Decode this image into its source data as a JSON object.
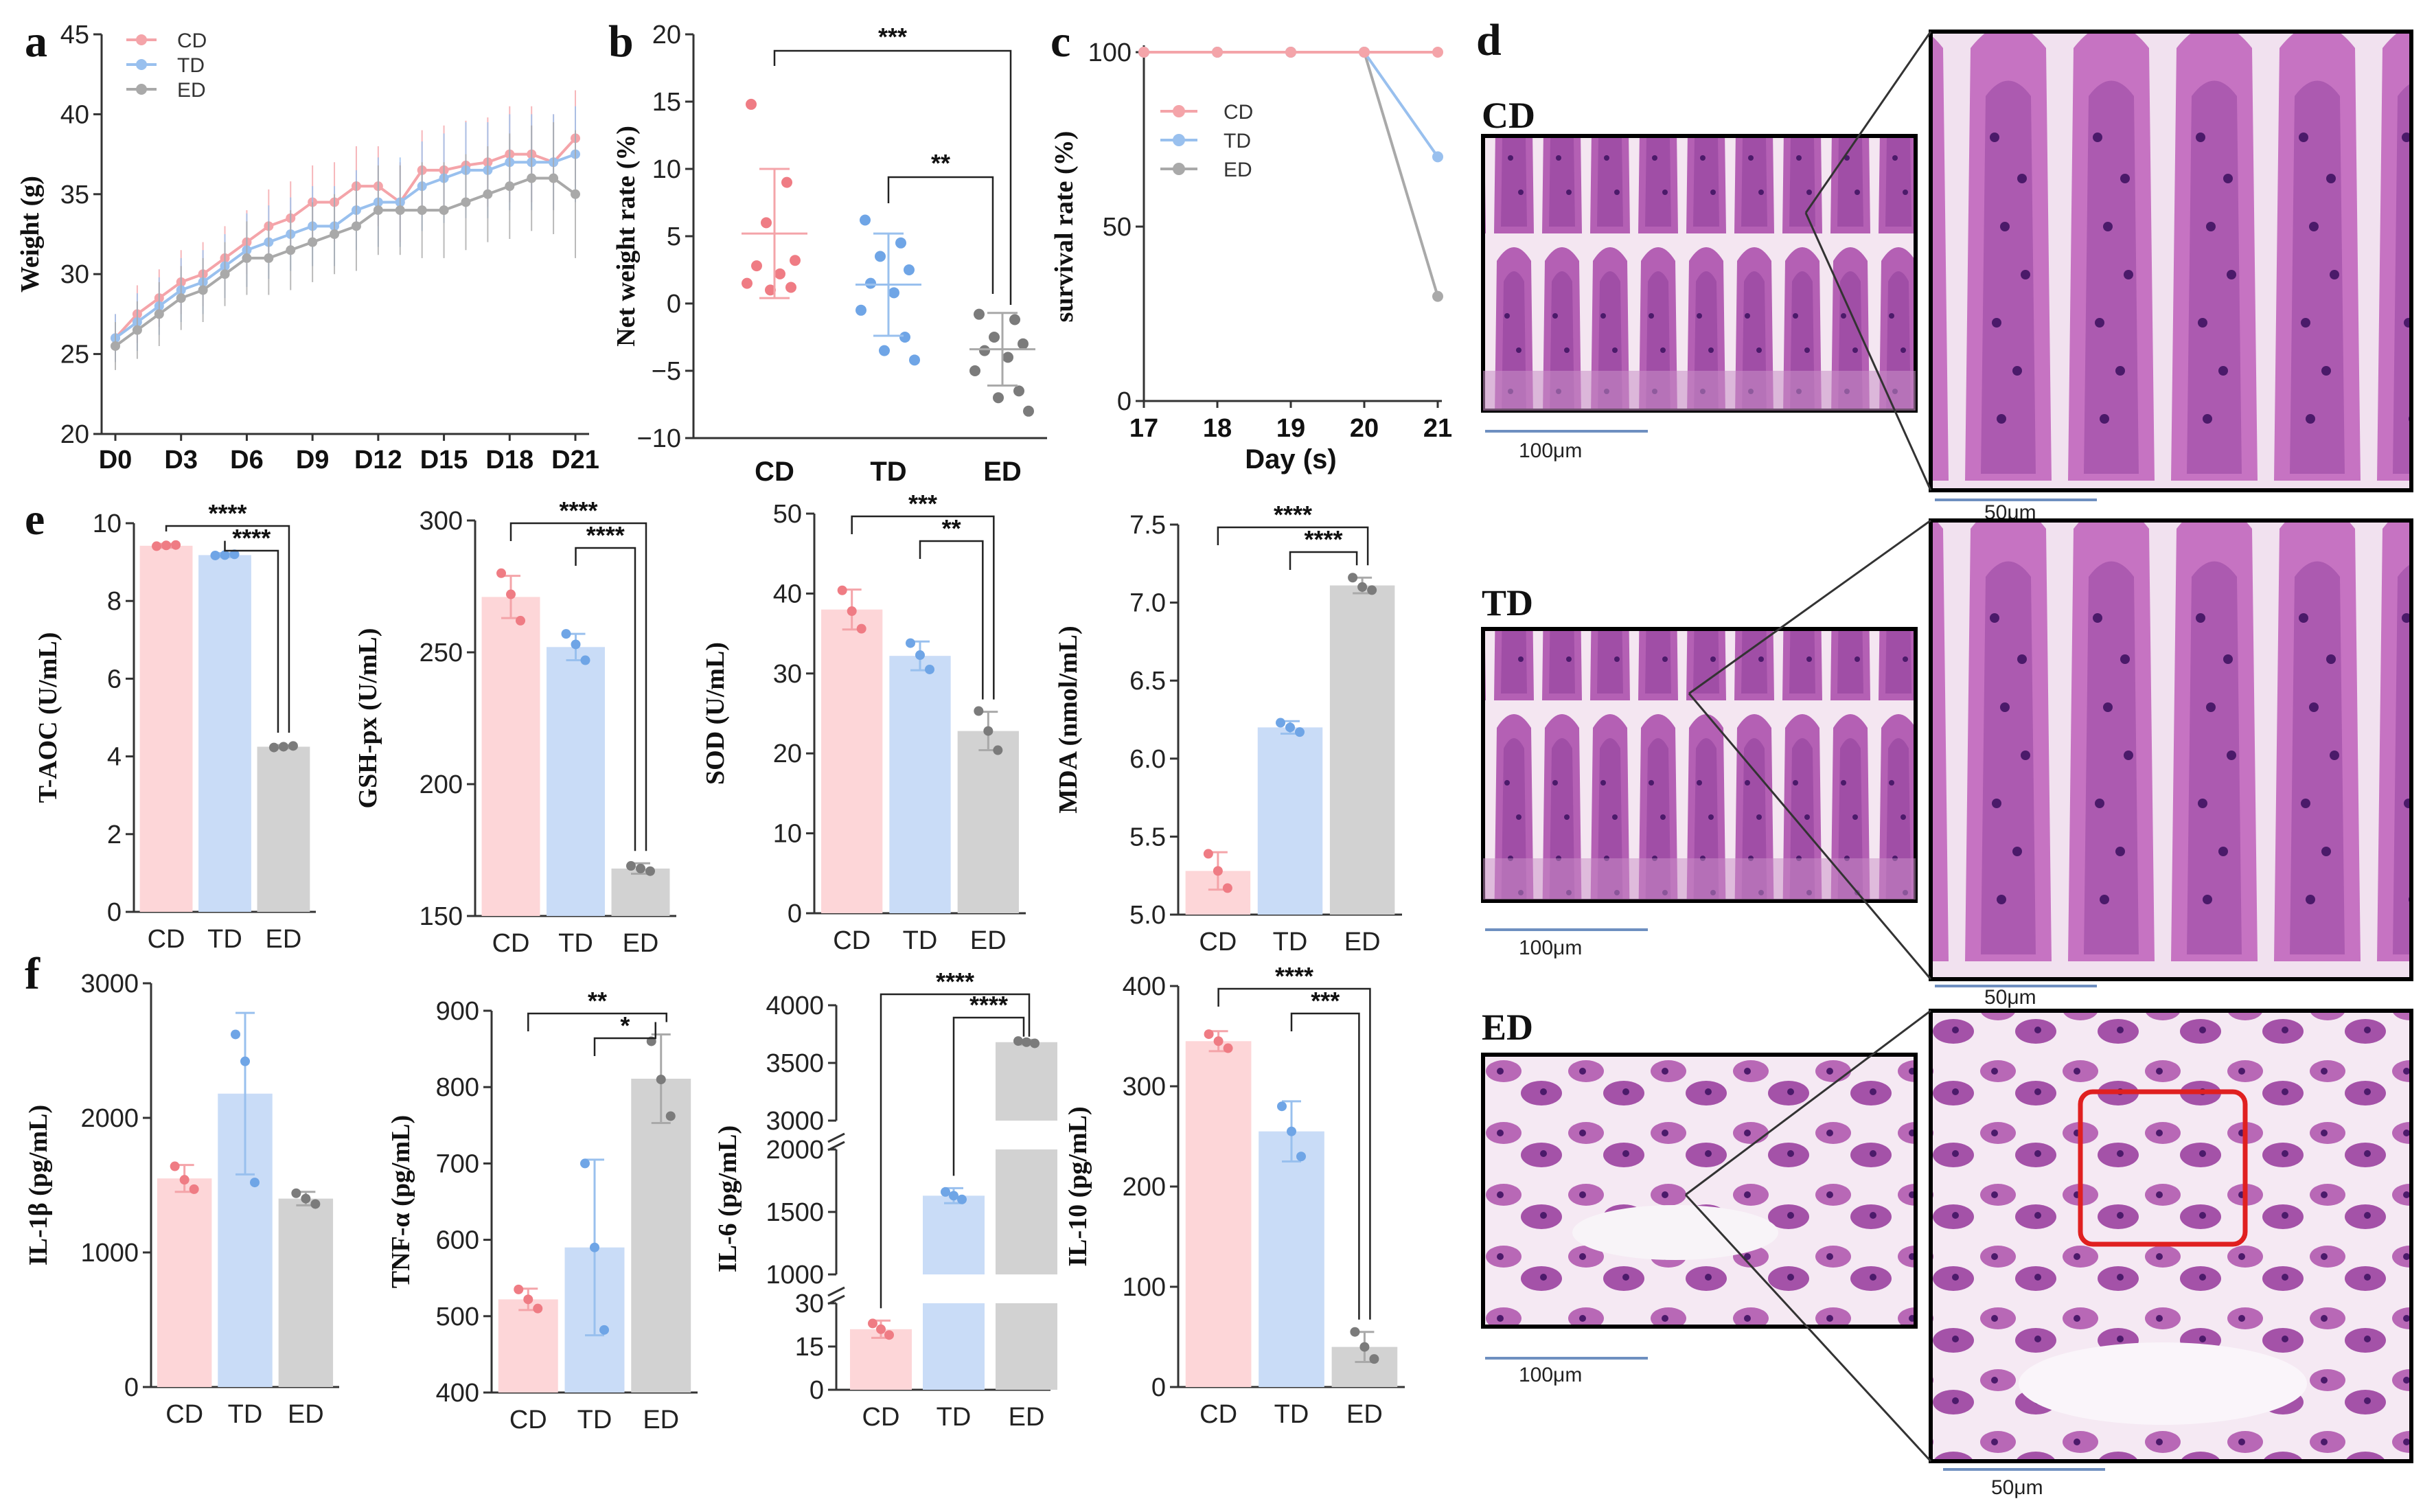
{
  "colors": {
    "CD": "#f4a4a9",
    "TD": "#99c0ee",
    "ED": "#a9a9a9",
    "CD_fill": "#fdd6d8",
    "TD_fill": "#c9dcf7",
    "ED_fill": "#d2d2d2",
    "CD_dot": "#ef7c84",
    "TD_dot": "#6fa5e6",
    "ED_dot": "#7b7b7b"
  },
  "groups": [
    "CD",
    "TD",
    "ED"
  ],
  "panel_letters": {
    "a": "a",
    "b": "b",
    "c": "c",
    "d": "d",
    "e": "e",
    "f": "f"
  },
  "chart_data": [
    {
      "id": "a",
      "type": "line",
      "ylabel": "Weight (g)",
      "ylim": [
        20,
        45
      ],
      "yticks": [
        20,
        25,
        30,
        35,
        40,
        45
      ],
      "x": [
        0,
        1,
        2,
        3,
        4,
        5,
        6,
        7,
        8,
        9,
        10,
        11,
        12,
        13,
        14,
        15,
        16,
        17,
        18,
        19,
        20,
        21
      ],
      "xticks": [
        0,
        3,
        6,
        9,
        12,
        15,
        18,
        21
      ],
      "xtick_labels": [
        "D0",
        "D3",
        "D6",
        "D9",
        "D12",
        "D15",
        "D18",
        "D21"
      ],
      "legend": [
        "CD",
        "TD",
        "ED"
      ],
      "series": [
        {
          "name": "CD",
          "values": [
            26,
            27.5,
            28.5,
            29.5,
            30,
            31,
            32,
            33,
            33.5,
            34.5,
            34.5,
            35.5,
            35.5,
            34.5,
            36.5,
            36.5,
            36.8,
            37,
            37.5,
            37.5,
            37,
            38.5
          ],
          "err": [
            1.5,
            1.8,
            1.8,
            2,
            2,
            2,
            2,
            2.3,
            2.3,
            2.3,
            2.5,
            2.5,
            2.5,
            2.5,
            2.5,
            2.8,
            2.8,
            2.8,
            3,
            3,
            3,
            3
          ]
        },
        {
          "name": "TD",
          "values": [
            26,
            27,
            28,
            29,
            29.5,
            30.5,
            31.5,
            32,
            32.5,
            33,
            33,
            34,
            34.5,
            34.5,
            35.5,
            36,
            36.5,
            36.5,
            37,
            37,
            37,
            37.5
          ],
          "err": [
            1.5,
            1.8,
            1.8,
            2,
            2,
            2,
            2.3,
            2.3,
            2.3,
            2.5,
            2.5,
            2.5,
            2.8,
            2.8,
            2.8,
            2.8,
            3,
            3,
            3,
            3,
            3,
            3
          ]
        },
        {
          "name": "ED",
          "values": [
            25.5,
            26.5,
            27.5,
            28.5,
            29,
            30,
            31,
            31,
            31.5,
            32,
            32.5,
            33,
            34,
            34,
            34,
            34,
            34.5,
            35,
            35.5,
            36,
            36,
            35
          ],
          "err": [
            1.5,
            1.8,
            2,
            2,
            2,
            2,
            2.3,
            2.3,
            2.5,
            2.5,
            2.5,
            2.8,
            2.8,
            2.8,
            3,
            3,
            3,
            3,
            3.3,
            3.3,
            3.5,
            4
          ]
        }
      ]
    },
    {
      "id": "b",
      "type": "scatter",
      "ylabel": "Net weight rate (%)",
      "ylim": [
        -10,
        20
      ],
      "yticks": [
        -10,
        -5,
        0,
        5,
        10,
        15,
        20
      ],
      "categories": [
        "CD",
        "TD",
        "ED"
      ],
      "points": [
        [
          14.8,
          9,
          6,
          3.2,
          2.8,
          2.2,
          1.5,
          1.2,
          1
        ],
        [
          6.2,
          4.5,
          3.5,
          2.5,
          1.5,
          0.8,
          -0.5,
          -2.5,
          -3.5,
          -4.2
        ],
        [
          -0.8,
          -1.2,
          -2.5,
          -3,
          -3.5,
          -4,
          -5,
          -6.5,
          -7,
          -8
        ]
      ],
      "means": [
        5.2,
        1.4,
        -3.4
      ],
      "sd": [
        4.8,
        3.8,
        2.7
      ],
      "significance": [
        {
          "from": 0,
          "to": 2,
          "label": "***"
        },
        {
          "from": 1,
          "to": 2,
          "label": "**"
        }
      ]
    },
    {
      "id": "c",
      "type": "line",
      "ylabel": "survival rate (%)",
      "xlabel": "Day (s)",
      "ylim": [
        0,
        100
      ],
      "yticks": [
        0,
        50,
        100
      ],
      "x": [
        17,
        18,
        19,
        20,
        21
      ],
      "xlim": [
        17,
        21
      ],
      "xticks": [
        17,
        18,
        19,
        20,
        21
      ],
      "legend": [
        "CD",
        "TD",
        "ED"
      ],
      "series": [
        {
          "name": "CD",
          "values": [
            100,
            100,
            100,
            100,
            100
          ]
        },
        {
          "name": "TD",
          "values": [
            100,
            100,
            100,
            100,
            70
          ]
        },
        {
          "name": "ED",
          "values": [
            100,
            100,
            100,
            100,
            30
          ]
        }
      ]
    },
    {
      "id": "e1",
      "type": "bar",
      "ylabel": "T-AOC (U/mL)",
      "ylim": [
        0,
        10
      ],
      "yticks": [
        0,
        2,
        4,
        6,
        8,
        10
      ],
      "categories": [
        "CD",
        "TD",
        "ED"
      ],
      "values": [
        9.42,
        9.18,
        4.25
      ],
      "sd": [
        0.05,
        0.05,
        0.04
      ],
      "points": [
        [
          9.41,
          9.43,
          9.44
        ],
        [
          9.17,
          9.18,
          9.2
        ],
        [
          4.23,
          4.25,
          4.27
        ]
      ],
      "significance": [
        {
          "from": 0,
          "to": 2,
          "label": "****"
        },
        {
          "from": 1,
          "to": 2,
          "label": "****"
        }
      ]
    },
    {
      "id": "e2",
      "type": "bar",
      "ylabel": "GSH-px (U/mL)",
      "ylim": [
        150,
        300
      ],
      "yticks": [
        150,
        200,
        250,
        300
      ],
      "categories": [
        "CD",
        "TD",
        "ED"
      ],
      "values": [
        271,
        252,
        168
      ],
      "sd": [
        8,
        5,
        2
      ],
      "points": [
        [
          280,
          272,
          262
        ],
        [
          257,
          253,
          247
        ],
        [
          169,
          168,
          167
        ]
      ],
      "significance": [
        {
          "from": 0,
          "to": 2,
          "label": "****"
        },
        {
          "from": 1,
          "to": 2,
          "label": "****"
        }
      ]
    },
    {
      "id": "e3",
      "type": "bar",
      "ylabel": "SOD (U/mL)",
      "ylim": [
        0,
        50
      ],
      "yticks": [
        0,
        10,
        20,
        30,
        40,
        50
      ],
      "categories": [
        "CD",
        "TD",
        "ED"
      ],
      "values": [
        38,
        32.2,
        22.8
      ],
      "sd": [
        2.5,
        1.8,
        2.4
      ],
      "points": [
        [
          40.4,
          37.8,
          35.6
        ],
        [
          33.8,
          32.3,
          30.5
        ],
        [
          25.3,
          22.8,
          20.4
        ]
      ],
      "significance": [
        {
          "from": 0,
          "to": 2,
          "label": "***"
        },
        {
          "from": 1,
          "to": 2,
          "label": "**"
        }
      ]
    },
    {
      "id": "e4",
      "type": "bar",
      "ylabel": "MDA (nmol/mL)",
      "ylim": [
        5.0,
        7.5
      ],
      "yticks": [
        5.0,
        5.5,
        6.0,
        6.5,
        7.0,
        7.5
      ],
      "ytick_labels": [
        "5.0",
        "5.5",
        "6.0",
        "6.5",
        "7.0",
        "7.5"
      ],
      "categories": [
        "CD",
        "TD",
        "ED"
      ],
      "values": [
        5.28,
        6.2,
        7.11
      ],
      "sd": [
        0.12,
        0.04,
        0.05
      ],
      "points": [
        [
          5.39,
          5.28,
          5.17
        ],
        [
          6.23,
          6.2,
          6.17
        ],
        [
          7.16,
          7.1,
          7.08
        ]
      ],
      "significance": [
        {
          "from": 0,
          "to": 2,
          "label": "****"
        },
        {
          "from": 1,
          "to": 2,
          "label": "****"
        }
      ]
    },
    {
      "id": "f1",
      "type": "bar",
      "ylabel": "IL-1β (pg/mL)",
      "ylim": [
        0,
        3000
      ],
      "yticks": [
        0,
        1000,
        2000,
        3000
      ],
      "categories": [
        "CD",
        "TD",
        "ED"
      ],
      "values": [
        1550,
        2180,
        1400
      ],
      "sd": [
        100,
        600,
        50
      ],
      "points": [
        [
          1640,
          1540,
          1470
        ],
        [
          2620,
          2420,
          1520
        ],
        [
          1440,
          1400,
          1360
        ]
      ],
      "significance": []
    },
    {
      "id": "f2",
      "type": "bar",
      "ylabel": "TNF-α (pg/mL)",
      "ylim": [
        400,
        900
      ],
      "yticks": [
        400,
        500,
        600,
        700,
        800,
        900
      ],
      "categories": [
        "CD",
        "TD",
        "ED"
      ],
      "values": [
        522,
        590,
        811
      ],
      "sd": [
        14,
        115,
        58
      ],
      "points": [
        [
          535,
          522,
          510
        ],
        [
          700,
          590,
          482
        ],
        [
          860,
          810,
          762
        ]
      ],
      "significance": [
        {
          "from": 0,
          "to": 2,
          "label": "**"
        },
        {
          "from": 1,
          "to": 2,
          "label": "*"
        }
      ]
    },
    {
      "id": "f3",
      "type": "bar",
      "ylabel": "IL-6 (pg/mL)",
      "broken_axis": true,
      "yticks": [
        0,
        15,
        30,
        1000,
        1500,
        2000,
        3000,
        3500,
        4000
      ],
      "categories": [
        "CD",
        "TD",
        "ED"
      ],
      "values": [
        21,
        1630,
        3680
      ],
      "sd": [
        3,
        60,
        20
      ],
      "points": [
        [
          23,
          21,
          19
        ],
        [
          1660,
          1630,
          1600
        ],
        [
          3690,
          3680,
          3670
        ]
      ],
      "significance": [
        {
          "from": 0,
          "to": 2,
          "label": "****"
        },
        {
          "from": 1,
          "to": 2,
          "label": "****"
        }
      ]
    },
    {
      "id": "f4",
      "type": "bar",
      "ylabel": "IL-10 (pg/mL)",
      "ylim": [
        0,
        400
      ],
      "yticks": [
        0,
        100,
        200,
        300,
        400
      ],
      "categories": [
        "CD",
        "TD",
        "ED"
      ],
      "values": [
        345,
        255,
        40
      ],
      "sd": [
        10,
        30,
        15
      ],
      "points": [
        [
          352,
          345,
          338
        ],
        [
          280,
          255,
          230
        ],
        [
          55,
          40,
          28
        ]
      ],
      "significance": [
        {
          "from": 0,
          "to": 2,
          "label": "****"
        },
        {
          "from": 1,
          "to": 2,
          "label": "***"
        }
      ]
    }
  ],
  "histology": {
    "rows": [
      {
        "label": "CD",
        "scale_low": "100μm",
        "scale_high": "50μm"
      },
      {
        "label": "TD",
        "scale_low": "100μm",
        "scale_high": "50μm"
      },
      {
        "label": "ED",
        "scale_low": "100μm",
        "scale_high": "50μm"
      }
    ]
  }
}
